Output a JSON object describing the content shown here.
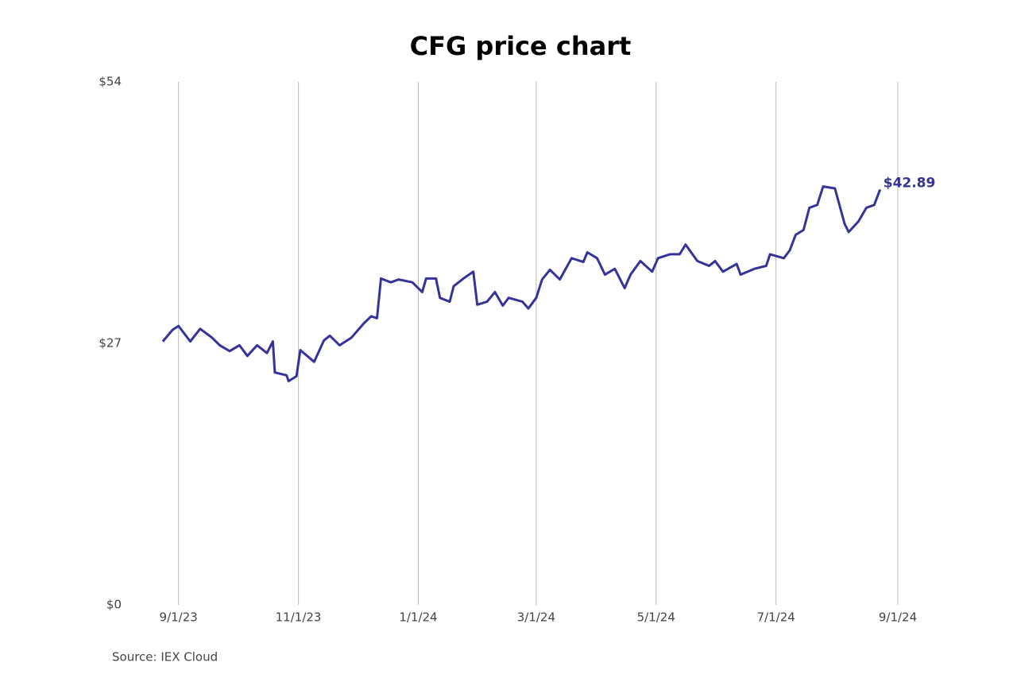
{
  "chart_data": {
    "type": "line",
    "title": "CFG price chart",
    "source": "Source: IEX Cloud",
    "x": [
      "2023-08-24",
      "2023-08-29",
      "2023-09-01",
      "2023-09-07",
      "2023-09-12",
      "2023-09-18",
      "2023-09-22",
      "2023-09-27",
      "2023-10-02",
      "2023-10-06",
      "2023-10-11",
      "2023-10-16",
      "2023-10-19",
      "2023-10-20",
      "2023-10-26",
      "2023-10-27",
      "2023-10-31",
      "2023-11-02",
      "2023-11-09",
      "2023-11-14",
      "2023-11-17",
      "2023-11-22",
      "2023-11-28",
      "2023-12-04",
      "2023-12-08",
      "2023-12-11",
      "2023-12-13",
      "2023-12-18",
      "2023-12-22",
      "2023-12-29",
      "2024-01-03",
      "2024-01-05",
      "2024-01-10",
      "2024-01-12",
      "2024-01-17",
      "2024-01-19",
      "2024-01-24",
      "2024-01-29",
      "2024-01-31",
      "2024-02-05",
      "2024-02-09",
      "2024-02-13",
      "2024-02-16",
      "2024-02-23",
      "2024-02-26",
      "2024-03-01",
      "2024-03-04",
      "2024-03-08",
      "2024-03-13",
      "2024-03-19",
      "2024-03-25",
      "2024-03-27",
      "2024-04-01",
      "2024-04-05",
      "2024-04-10",
      "2024-04-15",
      "2024-04-18",
      "2024-04-23",
      "2024-04-29",
      "2024-05-02",
      "2024-05-08",
      "2024-05-13",
      "2024-05-16",
      "2024-05-22",
      "2024-05-28",
      "2024-05-31",
      "2024-06-04",
      "2024-06-11",
      "2024-06-13",
      "2024-06-20",
      "2024-06-26",
      "2024-06-28",
      "2024-07-05",
      "2024-07-08",
      "2024-07-11",
      "2024-07-15",
      "2024-07-18",
      "2024-07-22",
      "2024-07-25",
      "2024-07-31",
      "2024-08-05",
      "2024-08-07",
      "2024-08-12",
      "2024-08-16",
      "2024-08-20",
      "2024-08-23"
    ],
    "series": [
      {
        "name": "CFG",
        "color": "#35339a",
        "values": [
          27.2,
          28.4,
          28.8,
          27.2,
          28.5,
          27.6,
          26.8,
          26.2,
          26.8,
          25.7,
          26.8,
          26.0,
          27.2,
          24.0,
          23.7,
          23.1,
          23.6,
          26.3,
          25.1,
          27.3,
          27.8,
          26.8,
          27.6,
          29.0,
          29.8,
          29.6,
          33.7,
          33.3,
          33.6,
          33.3,
          32.3,
          33.7,
          33.7,
          31.7,
          31.3,
          32.9,
          33.7,
          34.4,
          31.0,
          31.3,
          32.3,
          30.9,
          31.7,
          31.3,
          30.6,
          31.7,
          33.6,
          34.6,
          33.6,
          35.8,
          35.4,
          36.4,
          35.8,
          34.1,
          34.7,
          32.7,
          34.1,
          35.5,
          34.4,
          35.8,
          36.2,
          36.2,
          37.2,
          35.5,
          35.0,
          35.5,
          34.4,
          35.2,
          34.1,
          34.7,
          35.0,
          36.2,
          35.8,
          36.6,
          38.2,
          38.7,
          41.0,
          41.3,
          43.2,
          43.0,
          39.3,
          38.5,
          39.6,
          41.0,
          41.3,
          42.89
        ],
        "value_labels": [
          null,
          null,
          null,
          null,
          null,
          null,
          null,
          null,
          null,
          null,
          null,
          null,
          null,
          null,
          null,
          null,
          null,
          null,
          null,
          null,
          null,
          null,
          null,
          null,
          null,
          null,
          null,
          null,
          null,
          null,
          null,
          null,
          null,
          null,
          null,
          null,
          null,
          null,
          null,
          null,
          null,
          null,
          null,
          null,
          null,
          null,
          null,
          null,
          null,
          null,
          null,
          null,
          null,
          null,
          null,
          null,
          null,
          null,
          null,
          null,
          null,
          null,
          null,
          null,
          null,
          null,
          null,
          null,
          null,
          null,
          null,
          null,
          null,
          null,
          null,
          null,
          null,
          null,
          null,
          null,
          null,
          null,
          null,
          null,
          null,
          "$42.89"
        ]
      }
    ],
    "xlim": [
      "2023-08-01",
      "2024-09-20"
    ],
    "xticks": [
      {
        "value": "2023-09-01",
        "label": "9/1/23"
      },
      {
        "value": "2023-11-01",
        "label": "11/1/23"
      },
      {
        "value": "2024-01-01",
        "label": "1/1/24"
      },
      {
        "value": "2024-03-01",
        "label": "3/1/24"
      },
      {
        "value": "2024-05-01",
        "label": "5/1/24"
      },
      {
        "value": "2024-07-01",
        "label": "7/1/24"
      },
      {
        "value": "2024-09-01",
        "label": "9/1/24"
      }
    ],
    "ylim": [
      0,
      54
    ],
    "yticks": [
      {
        "value": 0,
        "label": "$0"
      },
      {
        "value": 27,
        "label": "$27"
      },
      {
        "value": 54,
        "label": "$54"
      }
    ],
    "grid": "x"
  }
}
